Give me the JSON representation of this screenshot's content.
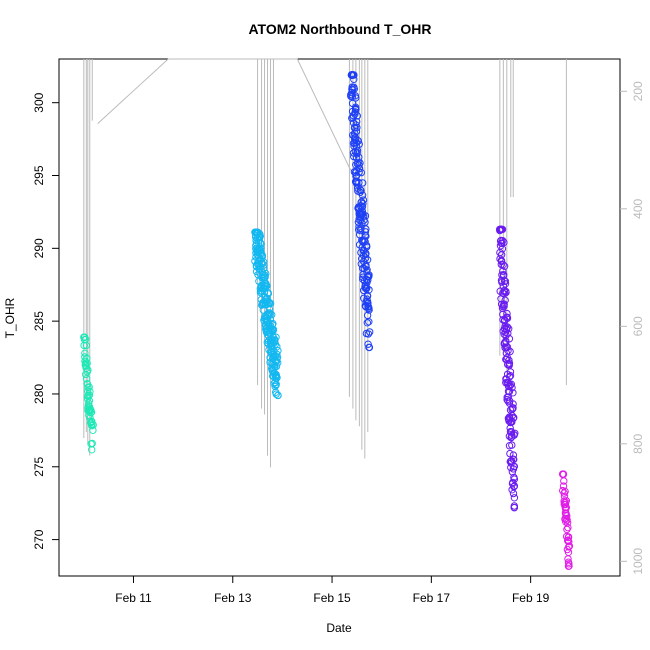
{
  "chart_data": {
    "type": "scatter",
    "title": "ATOM2 Northbound T_OHR",
    "xlabel": "Date",
    "ylabel": "T_OHR",
    "x_ticks": [
      "Feb 11",
      "Feb 13",
      "Feb 15",
      "Feb 17",
      "Feb 19"
    ],
    "x_tick_values": [
      11,
      13,
      15,
      17,
      19
    ],
    "xlim": [
      9.5,
      20.8
    ],
    "y_ticks": [
      "270",
      "275",
      "280",
      "285",
      "290",
      "295",
      "300"
    ],
    "y_tick_values": [
      270,
      275,
      280,
      285,
      290,
      295,
      300
    ],
    "ylim": [
      267.5,
      303.0
    ],
    "secondary_axis": {
      "ticks": [
        "200",
        "400",
        "600",
        "800",
        "1000"
      ],
      "tick_values": [
        200,
        400,
        600,
        800,
        1000
      ],
      "range_top_to_bottom": [
        145,
        1025
      ],
      "color": "#bbbbbb",
      "inverted": true
    },
    "series": [
      {
        "color": "#1de9b6",
        "x_range": [
          10.0,
          10.18
        ],
        "y_range": [
          275.6,
          283.9
        ],
        "n": 60
      },
      {
        "color": "#14b8f0",
        "x_range": [
          13.45,
          13.9
        ],
        "y_range": [
          279.9,
          291.1
        ],
        "n": 240
      },
      {
        "color": "#1f40f5",
        "x_range": [
          15.38,
          15.75
        ],
        "y_range": [
          283.2,
          301.9
        ],
        "n": 200
      },
      {
        "color": "#6a1cf0",
        "x_range": [
          18.38,
          18.68
        ],
        "y_range": [
          272.2,
          291.3
        ],
        "n": 170
      },
      {
        "color": "#e01ee6",
        "x_range": [
          19.65,
          19.78
        ],
        "y_range": [
          267.8,
          274.5
        ],
        "n": 45
      }
    ],
    "secondary_lines": {
      "color": "#bbbbbb",
      "path": [
        [
          10.28,
          255
        ],
        [
          11.7,
          145
        ],
        [
          14.3,
          145
        ],
        [
          15.35,
          330
        ],
        [
          15.5,
          350
        ]
      ],
      "spikes": [
        [
          10.0,
          145,
          790
        ],
        [
          10.05,
          145,
          780
        ],
        [
          10.08,
          145,
          800
        ],
        [
          10.12,
          145,
          820
        ],
        [
          10.17,
          145,
          250
        ],
        [
          13.5,
          145,
          700
        ],
        [
          13.58,
          145,
          740
        ],
        [
          13.64,
          145,
          750
        ],
        [
          13.7,
          145,
          820
        ],
        [
          13.76,
          145,
          840
        ],
        [
          13.82,
          145,
          600
        ],
        [
          15.35,
          145,
          720
        ],
        [
          15.42,
          145,
          740
        ],
        [
          15.48,
          145,
          760
        ],
        [
          15.55,
          145,
          770
        ],
        [
          15.6,
          145,
          810
        ],
        [
          15.66,
          145,
          825
        ],
        [
          15.72,
          145,
          780
        ],
        [
          18.38,
          145,
          650
        ],
        [
          18.45,
          145,
          650
        ],
        [
          18.52,
          145,
          700
        ],
        [
          18.6,
          145,
          380
        ],
        [
          18.65,
          145,
          380
        ],
        [
          19.72,
          145,
          700
        ]
      ]
    },
    "grid": false,
    "legend": "none"
  }
}
